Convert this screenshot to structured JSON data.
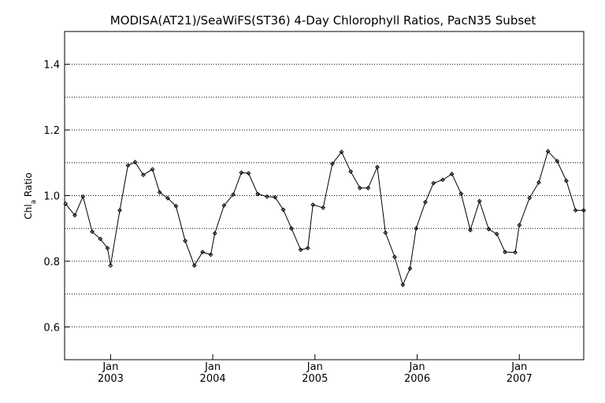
{
  "chart_data": {
    "type": "line",
    "title": "MODISA(AT21)/SeaWiFS(ST36) 4-Day Chlorophyll Ratios, PacN35 Subset",
    "xlabel": "",
    "ylabel_main": "Chl",
    "ylabel_sub": "a",
    "ylabel_tail": " Ratio",
    "ylim": [
      0.5,
      1.5
    ],
    "xlim": [
      2002.55,
      2007.63
    ],
    "y_ticks": [
      0.6,
      0.8,
      1.0,
      1.2,
      1.4
    ],
    "y_tick_labels": [
      "0.6",
      "0.8",
      "1.0",
      "1.2",
      "1.4"
    ],
    "y_gridlines": [
      0.6,
      0.7,
      0.8,
      0.9,
      1.0,
      1.1,
      1.2,
      1.3,
      1.4
    ],
    "x_ticks": [
      {
        "x": 2003.0,
        "month": "Jan",
        "year": "2003"
      },
      {
        "x": 2004.0,
        "month": "Jan",
        "year": "2004"
      },
      {
        "x": 2005.0,
        "month": "Jan",
        "year": "2005"
      },
      {
        "x": 2006.0,
        "month": "Jan",
        "year": "2006"
      },
      {
        "x": 2007.0,
        "month": "Jan",
        "year": "2007"
      }
    ],
    "grid": "horizontal dotted",
    "series": [
      {
        "color": "#000000",
        "x": [
          2002.56,
          2002.65,
          2002.73,
          2002.82,
          2002.9,
          2002.97,
          2003.0,
          2003.09,
          2003.17,
          2003.24,
          2003.32,
          2003.41,
          2003.48,
          2003.56,
          2003.64,
          2003.73,
          2003.82,
          2003.9,
          2003.98,
          2004.02,
          2004.11,
          2004.2,
          2004.28,
          2004.35,
          2004.44,
          2004.53,
          2004.61,
          2004.69,
          2004.77,
          2004.86,
          2004.93,
          2004.98,
          2005.08,
          2005.17,
          2005.26,
          2005.35,
          2005.44,
          2005.52,
          2005.61,
          2005.69,
          2005.78,
          2005.86,
          2005.93,
          2005.99,
          2006.08,
          2006.16,
          2006.25,
          2006.34,
          2006.43,
          2006.52,
          2006.61,
          2006.7,
          2006.78,
          2006.86,
          2006.96,
          2007.0,
          2007.1,
          2007.19,
          2007.28,
          2007.37,
          2007.46,
          2007.55,
          2007.63
        ],
        "y": [
          0.975,
          0.94,
          0.997,
          0.89,
          0.868,
          0.84,
          0.787,
          0.955,
          1.092,
          1.102,
          1.063,
          1.08,
          1.01,
          0.992,
          0.968,
          0.862,
          0.787,
          0.828,
          0.82,
          0.885,
          0.97,
          1.003,
          1.07,
          1.068,
          1.005,
          0.997,
          0.995,
          0.957,
          0.9,
          0.835,
          0.84,
          0.972,
          0.963,
          1.097,
          1.133,
          1.073,
          1.023,
          1.023,
          1.087,
          0.887,
          0.813,
          0.728,
          0.778,
          0.9,
          0.98,
          1.038,
          1.048,
          1.066,
          1.006,
          0.895,
          0.983,
          0.898,
          0.883,
          0.828,
          0.827,
          0.91,
          0.993,
          1.04,
          1.135,
          1.105,
          1.045,
          0.955,
          0.955
        ]
      }
    ]
  }
}
